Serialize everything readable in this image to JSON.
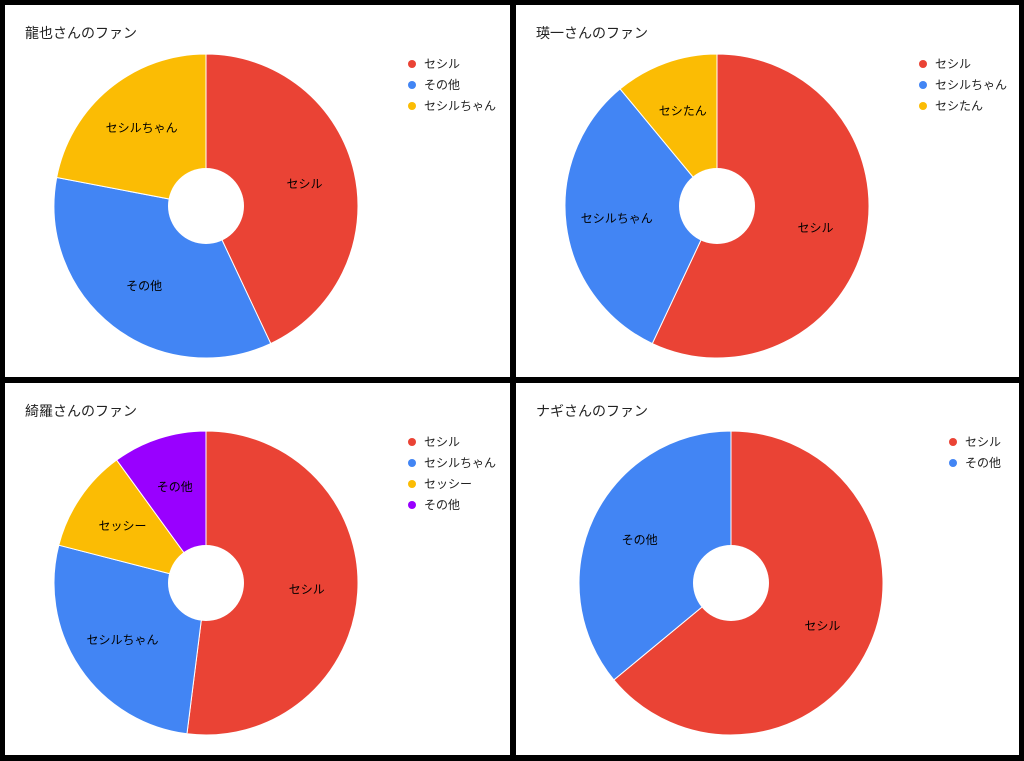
{
  "chart_data": [
    {
      "type": "pie",
      "title": "龍也さんのファン",
      "series": [
        {
          "name": "セシル",
          "value": 43,
          "color": "#ea4335"
        },
        {
          "name": "その他",
          "value": 35,
          "color": "#4285f4"
        },
        {
          "name": "セシルちゃん",
          "value": 22,
          "color": "#fbbc04"
        }
      ],
      "legend_position": "right"
    },
    {
      "type": "pie",
      "title": "瑛一さんのファン",
      "series": [
        {
          "name": "セシル",
          "value": 57,
          "color": "#ea4335"
        },
        {
          "name": "セシルちゃん",
          "value": 32,
          "color": "#4285f4"
        },
        {
          "name": "セシたん",
          "value": 11,
          "color": "#fbbc04"
        }
      ],
      "legend_position": "right"
    },
    {
      "type": "pie",
      "title": "綺羅さんのファン",
      "series": [
        {
          "name": "セシル",
          "value": 52,
          "color": "#ea4335"
        },
        {
          "name": "セシルちゃん",
          "value": 27,
          "color": "#4285f4"
        },
        {
          "name": "セッシー",
          "value": 11,
          "color": "#fbbc04"
        },
        {
          "name": "その他",
          "value": 10,
          "color": "#9900ff"
        }
      ],
      "legend_position": "right"
    },
    {
      "type": "pie",
      "title": "ナギさんのファン",
      "series": [
        {
          "name": "セシル",
          "value": 64,
          "color": "#ea4335"
        },
        {
          "name": "その他",
          "value": 36,
          "color": "#4285f4"
        }
      ],
      "legend_position": "right"
    }
  ]
}
